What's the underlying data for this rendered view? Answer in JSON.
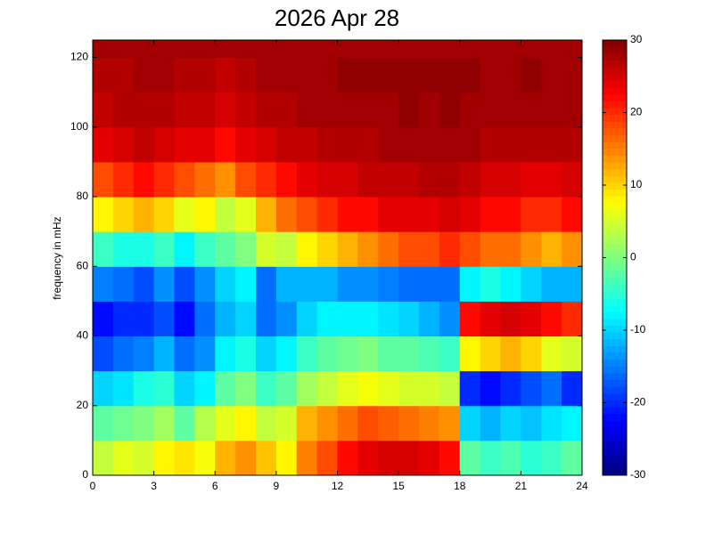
{
  "chart_data": {
    "type": "heatmap",
    "title": "2026 Apr 28",
    "ylabel": "frequency in mHz",
    "xbins": [
      0,
      1,
      2,
      3,
      4,
      5,
      6,
      7,
      8,
      9,
      10,
      11,
      12,
      13,
      14,
      15,
      16,
      17,
      18,
      19,
      20,
      21,
      22,
      23,
      24
    ],
    "ybins": [
      0,
      10,
      20,
      30,
      40,
      50,
      60,
      70,
      80,
      90,
      100,
      110,
      120,
      125
    ],
    "z": [
      [
        4,
        6,
        5,
        8,
        9,
        7,
        12,
        14,
        11,
        8,
        15,
        18,
        22,
        24,
        25,
        25,
        24,
        22,
        -2,
        -4,
        -3,
        -5,
        -4,
        -2
      ],
      [
        -2,
        -1,
        0,
        2,
        -2,
        3,
        6,
        8,
        4,
        5,
        12,
        14,
        16,
        18,
        17,
        16,
        15,
        14,
        -10,
        -12,
        -10,
        -11,
        -9,
        -8
      ],
      [
        -10,
        -9,
        -6,
        -5,
        -10,
        -8,
        -2,
        0,
        -4,
        -2,
        2,
        4,
        6,
        7,
        6,
        5,
        5,
        4,
        -20,
        -22,
        -20,
        -18,
        -16,
        -20
      ],
      [
        -18,
        -16,
        -15,
        -12,
        -16,
        -14,
        -8,
        -6,
        -10,
        -8,
        -4,
        -2,
        -1,
        0,
        -2,
        -2,
        -3,
        -4,
        8,
        10,
        12,
        10,
        6,
        5
      ],
      [
        -22,
        -20,
        -20,
        -18,
        -22,
        -16,
        -12,
        -10,
        -16,
        -14,
        -10,
        -8,
        -8,
        -8,
        -9,
        -10,
        -12,
        -14,
        22,
        24,
        25,
        24,
        22,
        20
      ],
      [
        -15,
        -16,
        -18,
        -14,
        -18,
        -14,
        -10,
        -8,
        -16,
        -12,
        -12,
        -12,
        -14,
        -14,
        -15,
        -16,
        -16,
        -16,
        -8,
        -6,
        -8,
        -10,
        -12,
        -12
      ],
      [
        -4,
        -6,
        -6,
        -4,
        -8,
        -4,
        -2,
        0,
        5,
        4,
        8,
        10,
        12,
        14,
        16,
        18,
        18,
        20,
        18,
        16,
        16,
        14,
        12,
        14
      ],
      [
        8,
        10,
        12,
        10,
        6,
        8,
        4,
        6,
        12,
        16,
        18,
        20,
        22,
        22,
        24,
        24,
        24,
        25,
        24,
        22,
        22,
        20,
        20,
        22
      ],
      [
        18,
        20,
        22,
        20,
        18,
        16,
        14,
        18,
        20,
        22,
        24,
        25,
        25,
        26,
        26,
        26,
        27,
        27,
        26,
        25,
        25,
        24,
        24,
        25
      ],
      [
        24,
        25,
        26,
        25,
        24,
        24,
        22,
        24,
        25,
        26,
        26,
        27,
        27,
        27,
        28,
        28,
        28,
        28,
        28,
        27,
        27,
        27,
        27,
        27
      ],
      [
        26,
        27,
        27,
        27,
        26,
        26,
        25,
        26,
        27,
        27,
        28,
        28,
        28,
        28,
        28,
        29,
        28,
        29,
        28,
        28,
        28,
        28,
        28,
        28
      ],
      [
        27,
        27,
        28,
        28,
        27,
        27,
        26,
        27,
        28,
        28,
        28,
        28,
        29,
        29,
        29,
        29,
        29,
        29,
        29,
        28,
        28,
        29,
        28,
        28
      ],
      [
        28,
        28,
        28,
        28,
        28,
        28,
        28,
        28,
        28,
        28,
        28,
        28,
        28,
        28,
        28,
        28,
        28,
        28,
        28,
        28,
        28,
        28,
        28,
        28
      ]
    ],
    "xlim": [
      0,
      24
    ],
    "xticks": [
      0,
      3,
      6,
      9,
      12,
      15,
      18,
      21,
      24
    ],
    "ylim": [
      0,
      125
    ],
    "yticks": [
      0,
      20,
      40,
      60,
      80,
      100,
      120
    ],
    "clim": [
      -30,
      30
    ],
    "cticks": [
      -30,
      -20,
      -10,
      0,
      10,
      20,
      30
    ],
    "colormap": "jet"
  }
}
